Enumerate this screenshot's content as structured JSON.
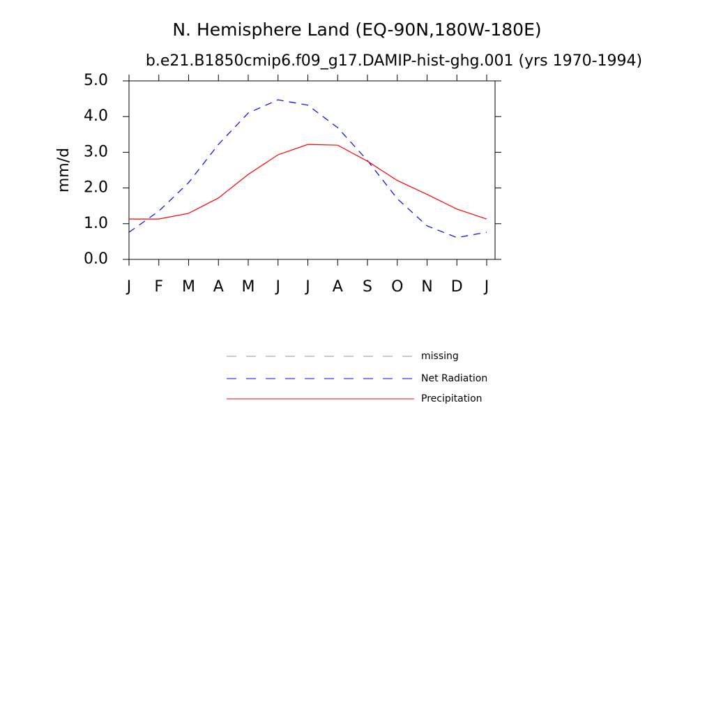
{
  "chart_data": {
    "type": "line",
    "title": "N. Hemisphere Land (EQ-90N,180W-180E)",
    "subtitle": "b.e21.B1850cmip6.f09_g17.DAMIP-hist-ghg.001 (yrs 1970-1994)",
    "ylabel": "mm/d",
    "categories": [
      "J",
      "F",
      "M",
      "A",
      "M",
      "J",
      "J",
      "A",
      "S",
      "O",
      "N",
      "D",
      "J"
    ],
    "series": [
      {
        "name": "missing",
        "color": "#999999",
        "dashed": true,
        "values": [
          null,
          null,
          null,
          null,
          null,
          null,
          null,
          null,
          null,
          null,
          null,
          null,
          null
        ]
      },
      {
        "name": "Net Radiation",
        "color": "#0000ff",
        "dashed": true,
        "values": [
          0.76,
          1.35,
          2.15,
          3.22,
          4.1,
          4.47,
          4.32,
          3.69,
          2.77,
          1.7,
          0.94,
          0.61,
          0.76
        ]
      },
      {
        "name": "Precipitation",
        "color": "#ff0000",
        "dashed": false,
        "values": [
          1.13,
          1.13,
          1.29,
          1.72,
          2.38,
          2.93,
          3.22,
          3.2,
          2.75,
          2.21,
          1.82,
          1.41,
          1.13
        ]
      }
    ],
    "ylim": [
      0,
      5
    ],
    "yticks": [
      {
        "value": 0,
        "label": "0.0"
      },
      {
        "value": 1,
        "label": "1.0"
      },
      {
        "value": 2,
        "label": "2.0"
      },
      {
        "value": 3,
        "label": "3.0"
      },
      {
        "value": 4,
        "label": "4.0"
      },
      {
        "value": 5,
        "label": "5.0"
      }
    ],
    "grid": false
  }
}
